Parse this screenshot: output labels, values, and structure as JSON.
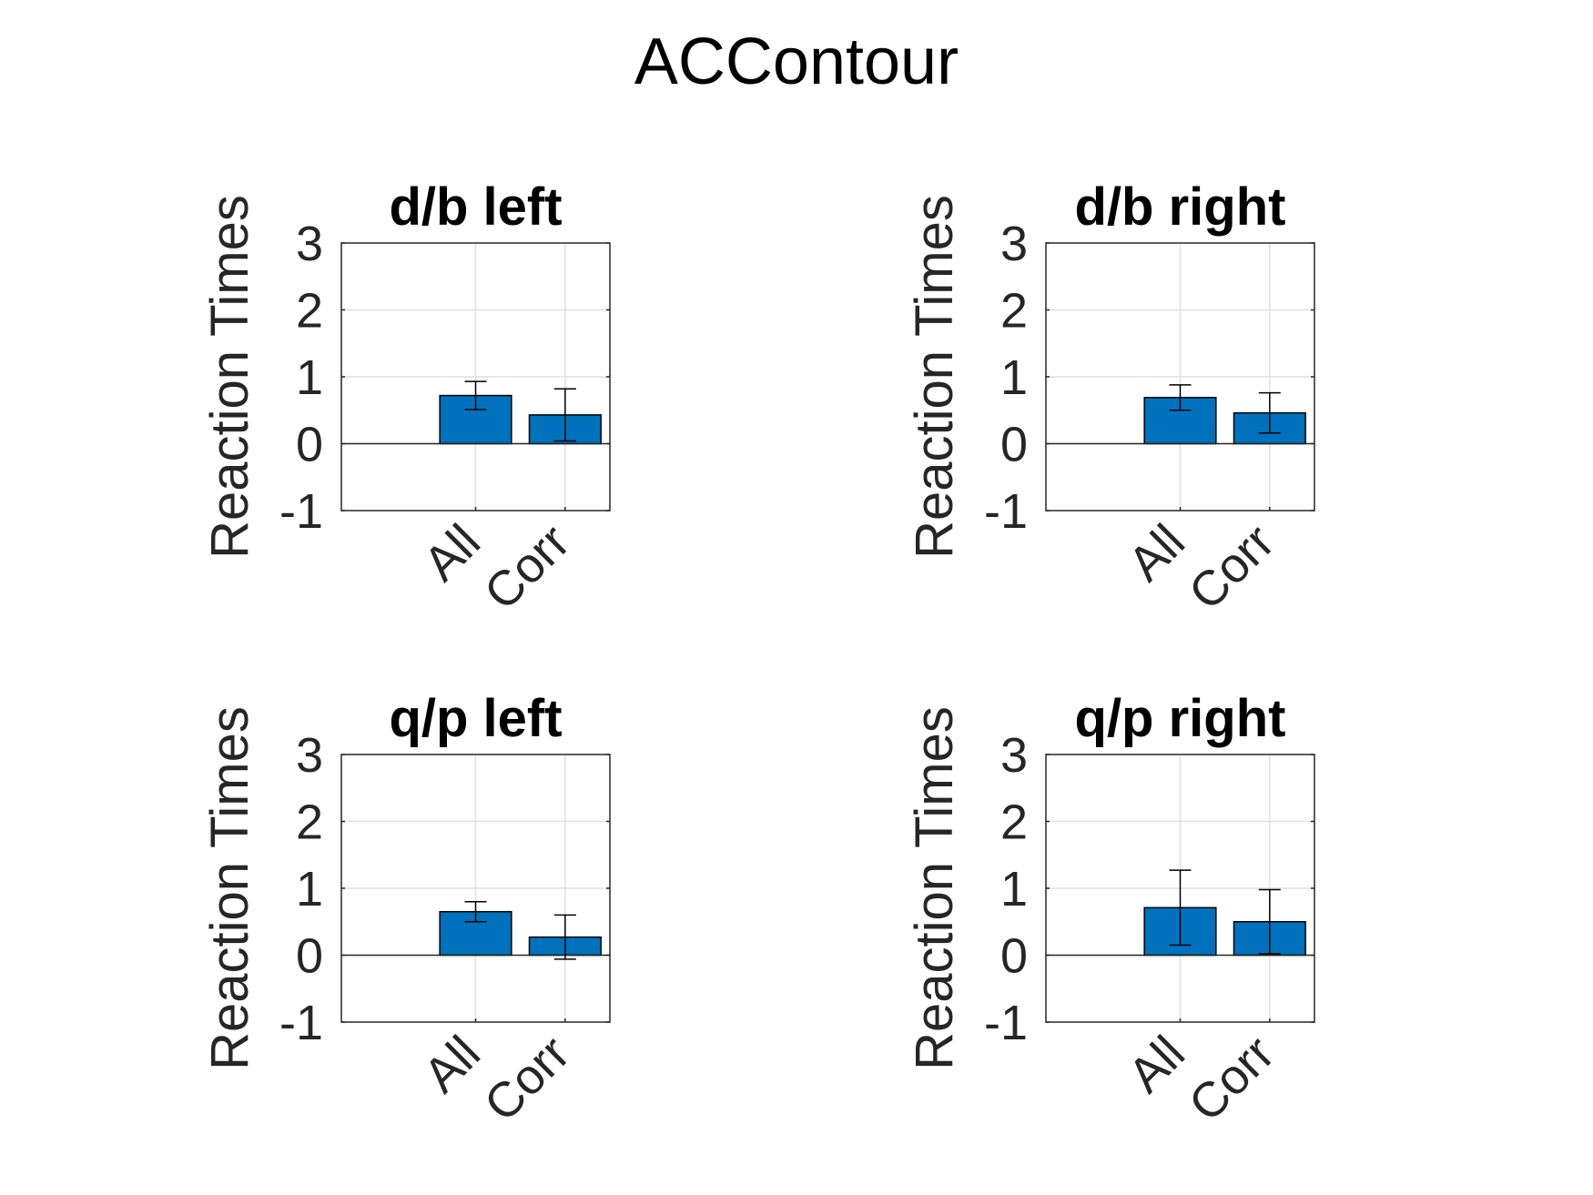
{
  "figure": {
    "title": "ACContour"
  },
  "colors": {
    "bar": "#0072BD",
    "axis": "#262626",
    "grid": "#dfdfdf",
    "errorbar": "#000000"
  },
  "chart_data": [
    {
      "type": "bar",
      "title": "d/b left",
      "ylabel": "Reaction Times",
      "xlabel": "",
      "categories": [
        "All",
        "Corr"
      ],
      "values": [
        0.72,
        0.43
      ],
      "error": [
        0.21,
        0.39
      ],
      "ylim": [
        -1,
        3
      ],
      "yticks": [
        -1,
        0,
        1,
        2,
        3
      ],
      "grid": true
    },
    {
      "type": "bar",
      "title": "d/b right",
      "ylabel": "Reaction Times",
      "xlabel": "",
      "categories": [
        "All",
        "Corr"
      ],
      "values": [
        0.69,
        0.46
      ],
      "error": [
        0.19,
        0.3
      ],
      "ylim": [
        -1,
        3
      ],
      "yticks": [
        -1,
        0,
        1,
        2,
        3
      ],
      "grid": true
    },
    {
      "type": "bar",
      "title": "q/p left",
      "ylabel": "Reaction Times",
      "xlabel": "",
      "categories": [
        "All",
        "Corr"
      ],
      "values": [
        0.65,
        0.27
      ],
      "error": [
        0.15,
        0.33
      ],
      "ylim": [
        -1,
        3
      ],
      "yticks": [
        -1,
        0,
        1,
        2,
        3
      ],
      "grid": true
    },
    {
      "type": "bar",
      "title": "q/p right",
      "ylabel": "Reaction Times",
      "xlabel": "",
      "categories": [
        "All",
        "Corr"
      ],
      "values": [
        0.71,
        0.5
      ],
      "error": [
        0.56,
        0.48
      ],
      "ylim": [
        -1,
        3
      ],
      "yticks": [
        -1,
        0,
        1,
        2,
        3
      ],
      "grid": true
    }
  ]
}
